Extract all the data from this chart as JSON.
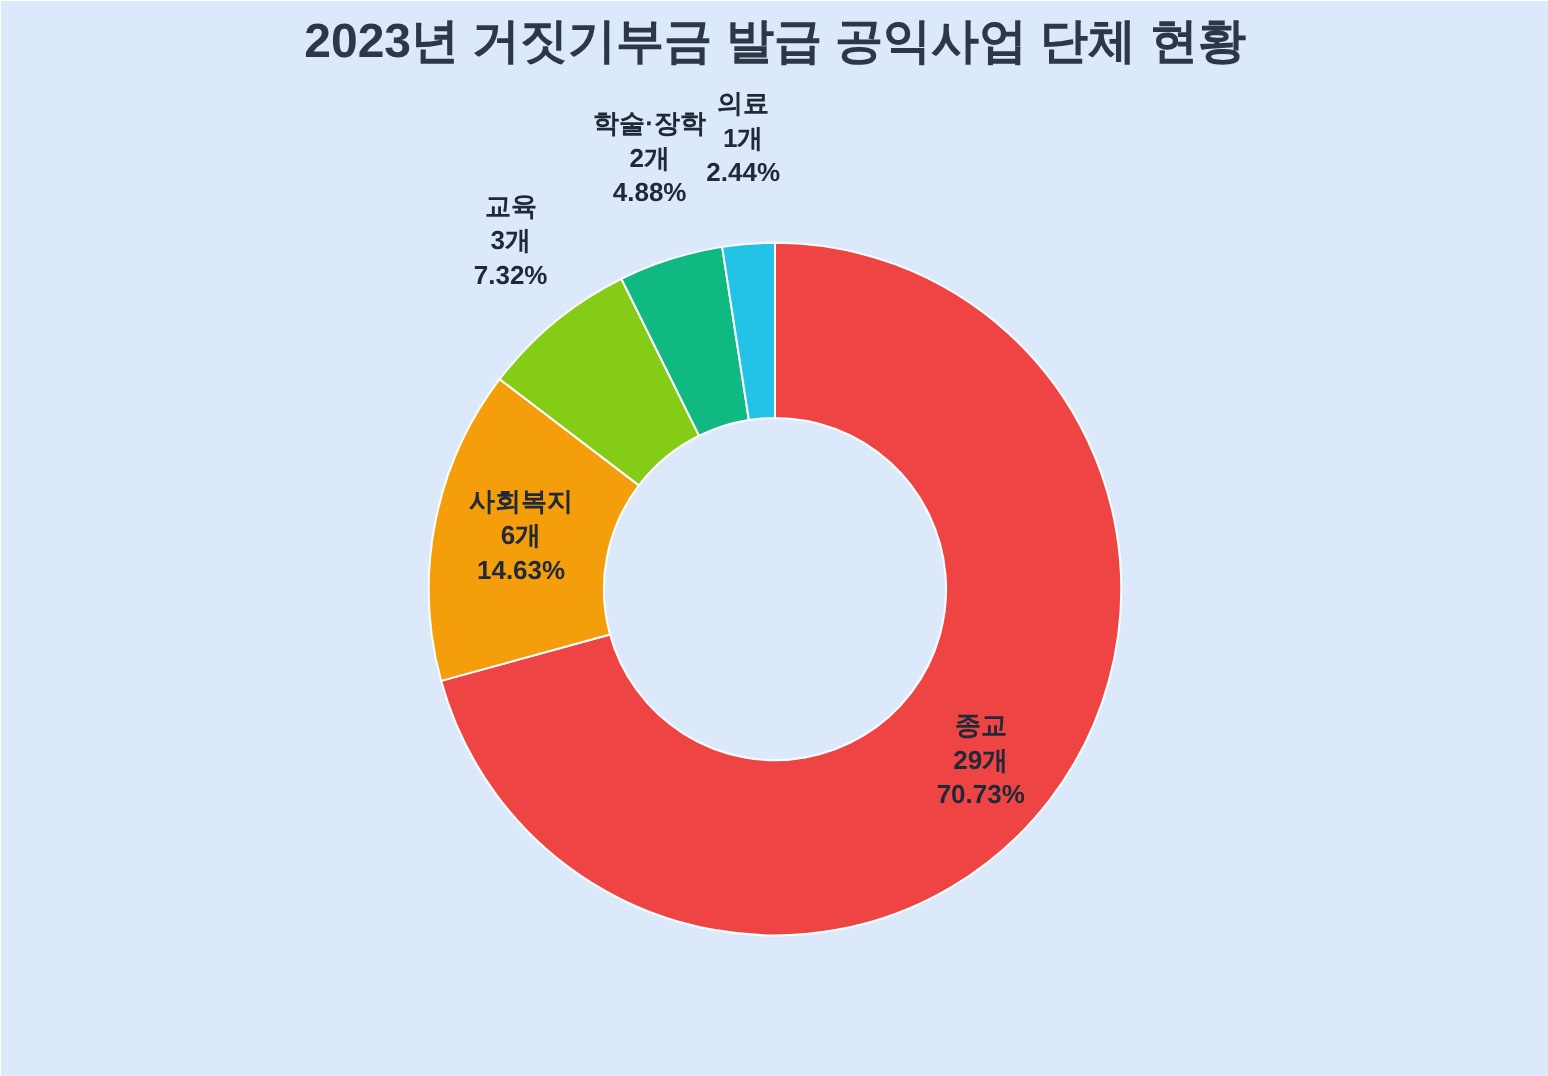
{
  "chart_data": {
    "type": "donut",
    "title": "2023년 거짓기부금 발급 공익사업 단체 현황",
    "categories": [
      "종교",
      "사회복지",
      "교육",
      "학술·장학",
      "의료"
    ],
    "values": [
      29,
      6,
      3,
      2,
      1
    ],
    "colors": [
      "#ef4444",
      "#f59e0b",
      "#84cc16",
      "#10b981",
      "#22c3e6"
    ],
    "value_labels": [
      "29개\n70.73%",
      "6개\n14.63%",
      "3개\n7.32%",
      "2개\n4.88%",
      "1개\n2.44%"
    ],
    "legend": false
  }
}
